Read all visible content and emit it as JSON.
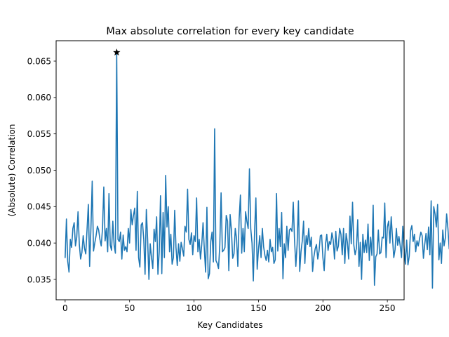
{
  "chart_data": {
    "type": "line",
    "title": "Max absolute correlation for every key candidate",
    "xlabel": "Key Candidates",
    "ylabel": "(Absolute) Correlation",
    "xlim": [
      -7,
      263
    ],
    "ylim": [
      0.0322,
      0.0678
    ],
    "xticks": [
      0,
      50,
      100,
      150,
      200,
      250
    ],
    "xtick_labels": [
      "0",
      "50",
      "100",
      "150",
      "200",
      "250"
    ],
    "yticks": [
      0.035,
      0.04,
      0.045,
      0.05,
      0.055,
      0.06,
      0.065
    ],
    "ytick_labels": [
      "0.035",
      "0.040",
      "0.045",
      "0.050",
      "0.055",
      "0.060",
      "0.065"
    ],
    "grid": false,
    "series": [
      {
        "name": "max abs correlation",
        "color": "#1f77b4",
        "x_start": 0,
        "values": [
          0.038,
          0.0433,
          0.0375,
          0.036,
          0.0405,
          0.0394,
          0.042,
          0.0428,
          0.0396,
          0.0408,
          0.0443,
          0.0398,
          0.0378,
          0.0387,
          0.041,
          0.0393,
          0.0385,
          0.0419,
          0.0453,
          0.0368,
          0.042,
          0.0485,
          0.0389,
          0.04,
          0.041,
          0.0423,
          0.0418,
          0.0405,
          0.0396,
          0.042,
          0.0477,
          0.0403,
          0.042,
          0.0388,
          0.0468,
          0.0397,
          0.039,
          0.043,
          0.0397,
          0.0386,
          0.0662,
          0.0405,
          0.0402,
          0.0415,
          0.0378,
          0.0411,
          0.039,
          0.0395,
          0.0388,
          0.042,
          0.04,
          0.0446,
          0.0425,
          0.0438,
          0.0448,
          0.039,
          0.0471,
          0.038,
          0.0367,
          0.0425,
          0.0428,
          0.0405,
          0.0357,
          0.0446,
          0.0405,
          0.035,
          0.0399,
          0.038,
          0.0365,
          0.0419,
          0.0402,
          0.0436,
          0.0357,
          0.0388,
          0.0465,
          0.0358,
          0.0442,
          0.038,
          0.0493,
          0.0422,
          0.045,
          0.0388,
          0.0412,
          0.0371,
          0.038,
          0.0445,
          0.0394,
          0.0369,
          0.0399,
          0.0375,
          0.0401,
          0.0392,
          0.0382,
          0.0423,
          0.0415,
          0.0474,
          0.0405,
          0.0398,
          0.0414,
          0.0384,
          0.041,
          0.0402,
          0.0462,
          0.0388,
          0.0405,
          0.0378,
          0.0398,
          0.0428,
          0.0391,
          0.036,
          0.0449,
          0.0351,
          0.0358,
          0.0402,
          0.0415,
          0.0374,
          0.0557,
          0.0376,
          0.0372,
          0.0365,
          0.0397,
          0.0469,
          0.0388,
          0.039,
          0.0394,
          0.0438,
          0.043,
          0.0362,
          0.0439,
          0.0418,
          0.0379,
          0.0385,
          0.042,
          0.0406,
          0.0368,
          0.0433,
          0.0466,
          0.0386,
          0.042,
          0.0388,
          0.0443,
          0.043,
          0.042,
          0.0502,
          0.042,
          0.04,
          0.0348,
          0.0416,
          0.0462,
          0.0364,
          0.0391,
          0.041,
          0.038,
          0.042,
          0.0395,
          0.0383,
          0.0376,
          0.039,
          0.0374,
          0.0405,
          0.0388,
          0.0394,
          0.0372,
          0.0377,
          0.0468,
          0.0389,
          0.042,
          0.0395,
          0.0442,
          0.0351,
          0.0399,
          0.038,
          0.0423,
          0.039,
          0.0418,
          0.042,
          0.0416,
          0.0456,
          0.0404,
          0.0368,
          0.0398,
          0.0458,
          0.0361,
          0.0388,
          0.0403,
          0.043,
          0.0372,
          0.041,
          0.0398,
          0.042,
          0.0395,
          0.0408,
          0.0361,
          0.0381,
          0.0392,
          0.0398,
          0.0378,
          0.0389,
          0.041,
          0.0411,
          0.038,
          0.0362,
          0.0398,
          0.0412,
          0.039,
          0.0402,
          0.0398,
          0.0414,
          0.0404,
          0.0378,
          0.0416,
          0.0389,
          0.0396,
          0.042,
          0.0412,
          0.0384,
          0.042,
          0.0372,
          0.0413,
          0.0401,
          0.0378,
          0.0437,
          0.0399,
          0.0456,
          0.0397,
          0.0384,
          0.0393,
          0.0432,
          0.0368,
          0.0401,
          0.035,
          0.0412,
          0.0387,
          0.0404,
          0.0387,
          0.0426,
          0.0376,
          0.0408,
          0.0383,
          0.0452,
          0.0342,
          0.0381,
          0.0385,
          0.0418,
          0.0385,
          0.0387,
          0.0408,
          0.0407,
          0.0455,
          0.038,
          0.0422,
          0.043,
          0.04,
          0.0436,
          0.0407,
          0.038,
          0.0391,
          0.042,
          0.0397,
          0.0409,
          0.0396,
          0.038,
          0.0423,
          0.0393,
          0.0371,
          0.0404,
          0.037,
          0.0382,
          0.0417,
          0.0424,
          0.0402,
          0.0412,
          0.0388,
          0.0403,
          0.0396,
          0.0406,
          0.0415,
          0.041,
          0.0379,
          0.0398,
          0.0413,
          0.0391,
          0.0422,
          0.0384,
          0.0458,
          0.0338,
          0.045,
          0.044,
          0.0422,
          0.0453,
          0.0377,
          0.04,
          0.0372,
          0.0418,
          0.0396,
          0.0407,
          0.044,
          0.042,
          0.0392,
          0.0424,
          0.0445,
          0.0398,
          0.0419,
          0.0375,
          0.0372,
          0.042,
          0.0405,
          0.0395,
          0.0435,
          0.0402
        ]
      }
    ],
    "marker": {
      "x": 40,
      "y": 0.0662,
      "symbol": "star",
      "color": "#000000"
    }
  }
}
